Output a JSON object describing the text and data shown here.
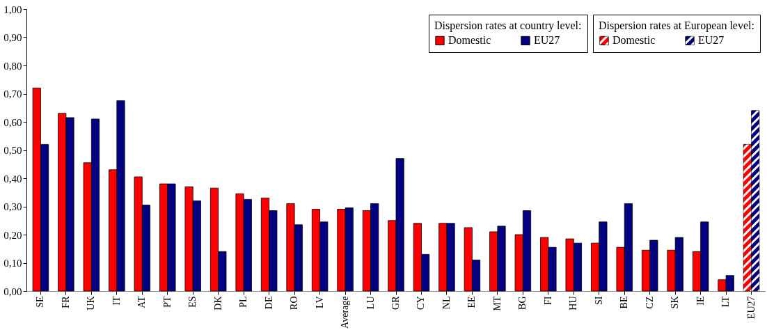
{
  "chart_data": {
    "type": "bar",
    "categories": [
      "SE",
      "FR",
      "UK",
      "IT",
      "AT",
      "PT",
      "ES",
      "DK",
      "PL",
      "DE",
      "RO",
      "LV",
      "Average",
      "LU",
      "GR",
      "CY",
      "NL",
      "EE",
      "MT",
      "BG",
      "FI",
      "HU",
      "SI",
      "BE",
      "CZ",
      "SK",
      "IE",
      "LT",
      "EU27"
    ],
    "series": [
      {
        "name": "Domestic",
        "color": "#ff0000",
        "values": [
          0.72,
          0.63,
          0.455,
          0.43,
          0.405,
          0.38,
          0.37,
          0.365,
          0.345,
          0.33,
          0.31,
          0.29,
          0.29,
          0.285,
          0.25,
          0.24,
          0.24,
          0.225,
          0.21,
          0.2,
          0.19,
          0.185,
          0.17,
          0.155,
          0.145,
          0.145,
          0.14,
          0.04,
          null
        ]
      },
      {
        "name": "EU27",
        "color": "#000080",
        "values": [
          0.52,
          0.615,
          0.61,
          0.675,
          0.305,
          0.38,
          0.32,
          0.14,
          0.325,
          0.285,
          0.235,
          0.245,
          0.295,
          0.31,
          0.47,
          0.13,
          0.24,
          0.11,
          0.23,
          0.285,
          0.155,
          0.17,
          0.245,
          0.31,
          0.18,
          0.19,
          0.245,
          0.055,
          null
        ]
      },
      {
        "name": "Domestic",
        "color": "#ff0000",
        "values": [
          null,
          null,
          null,
          null,
          null,
          null,
          null,
          null,
          null,
          null,
          null,
          null,
          null,
          null,
          null,
          null,
          null,
          null,
          null,
          null,
          null,
          null,
          null,
          null,
          null,
          null,
          null,
          null,
          0.52
        ]
      },
      {
        "name": "EU27",
        "color": "#000080",
        "values": [
          null,
          null,
          null,
          null,
          null,
          null,
          null,
          null,
          null,
          null,
          null,
          null,
          null,
          null,
          null,
          null,
          null,
          null,
          null,
          null,
          null,
          null,
          null,
          null,
          null,
          null,
          null,
          null,
          0.64
        ]
      }
    ],
    "ylim": [
      0,
      1
    ],
    "yticks": [
      {
        "value": 0,
        "label": "0,00"
      },
      {
        "value": 0.1,
        "label": "0,10"
      },
      {
        "value": 0.2,
        "label": "0,20"
      },
      {
        "value": 0.3,
        "label": "0,30"
      },
      {
        "value": 0.4,
        "label": "0,40"
      },
      {
        "value": 0.5,
        "label": "0,50"
      },
      {
        "value": 0.6,
        "label": "0,60"
      },
      {
        "value": 0.7,
        "label": "0,70"
      },
      {
        "value": 0.8,
        "label": "0,80"
      },
      {
        "value": 0.9,
        "label": "0,90"
      },
      {
        "value": 1,
        "label": "1,00"
      }
    ],
    "legend_title": "Dispersion rates at country level:",
    "annotations": [
      "Dispersion rates at European level:"
    ],
    "legend": "top right"
  }
}
